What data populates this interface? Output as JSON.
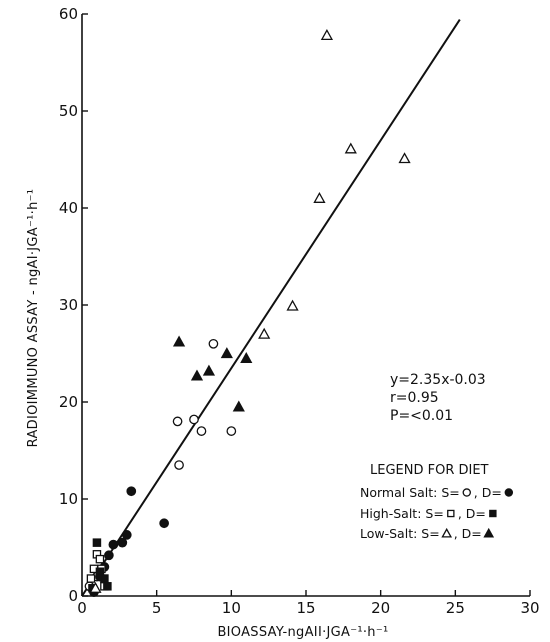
{
  "chart_data": {
    "type": "scatter",
    "xlabel": "BIOASSAY-ngAII·JGA⁻¹·h⁻¹",
    "ylabel": "RADIOIMMUNO ASSAY - ngAI·JGA⁻¹·h⁻¹",
    "xlim": [
      0,
      30
    ],
    "ylim": [
      0,
      60
    ],
    "x_ticks": [
      0,
      5,
      10,
      15,
      20,
      25,
      30
    ],
    "y_ticks": [
      0,
      10,
      20,
      30,
      40,
      50,
      60
    ],
    "x_tick_labels": [
      "0",
      "5",
      "10",
      "15",
      "20",
      "25",
      "30"
    ],
    "y_tick_labels": [
      "0",
      "10",
      "20",
      "30",
      "40",
      "50",
      "60"
    ],
    "grid": false,
    "legend_position": "lower-right",
    "regression": {
      "slope": 2.35,
      "intercept": -0.03,
      "x_range": [
        0,
        25.3
      ]
    },
    "annotations": [
      "y=2.35x-0.03",
      "r=0.95",
      "P=<0.01"
    ],
    "legend_title": "LEGEND FOR DIET",
    "legend_entries": [
      {
        "label": "Normal Salt: S=",
        "sep": ", D=",
        "open_marker": "circle-open",
        "filled_marker": "circle-filled"
      },
      {
        "label": "High-Salt: S=",
        "sep": ", D=",
        "open_marker": "square-open",
        "filled_marker": "square-filled"
      },
      {
        "label": "Low-Salt: S=",
        "sep": ", D=",
        "open_marker": "triangle-open",
        "filled_marker": "triangle-filled"
      }
    ],
    "series": [
      {
        "marker": "circle-open",
        "points": [
          [
            0.5,
            1.0
          ],
          [
            1.0,
            2.0
          ],
          [
            6.4,
            18.0
          ],
          [
            6.5,
            13.5
          ],
          [
            7.5,
            18.2
          ],
          [
            8.0,
            17.0
          ],
          [
            8.8,
            26.0
          ],
          [
            10.0,
            17.0
          ]
        ]
      },
      {
        "marker": "circle-filled",
        "points": [
          [
            0.8,
            0.4
          ],
          [
            1.2,
            2.0
          ],
          [
            1.5,
            3.0
          ],
          [
            1.8,
            4.2
          ],
          [
            2.1,
            5.3
          ],
          [
            2.7,
            5.5
          ],
          [
            3.0,
            6.3
          ],
          [
            3.3,
            10.8
          ],
          [
            5.5,
            7.5
          ]
        ]
      },
      {
        "marker": "square-open",
        "points": [
          [
            0.6,
            1.8
          ],
          [
            0.8,
            2.8
          ],
          [
            1.0,
            4.3
          ],
          [
            1.2,
            3.8
          ],
          [
            1.3,
            2.8
          ],
          [
            1.5,
            1.0
          ]
        ]
      },
      {
        "marker": "square-filled",
        "points": [
          [
            0.7,
            0.8
          ],
          [
            1.0,
            5.5
          ],
          [
            1.2,
            2.5
          ],
          [
            1.5,
            1.8
          ],
          [
            1.7,
            1.0
          ]
        ]
      },
      {
        "marker": "triangle-open",
        "points": [
          [
            0.9,
            0.8
          ],
          [
            12.2,
            27.0
          ],
          [
            14.1,
            29.9
          ],
          [
            15.9,
            41.0
          ],
          [
            16.4,
            57.8
          ],
          [
            18.0,
            46.1
          ],
          [
            21.6,
            45.1
          ]
        ]
      },
      {
        "marker": "triangle-filled",
        "points": [
          [
            6.5,
            26.2
          ],
          [
            7.7,
            22.7
          ],
          [
            8.5,
            23.2
          ],
          [
            9.7,
            25.0
          ],
          [
            10.5,
            19.5
          ],
          [
            11.0,
            24.5
          ]
        ]
      }
    ]
  }
}
